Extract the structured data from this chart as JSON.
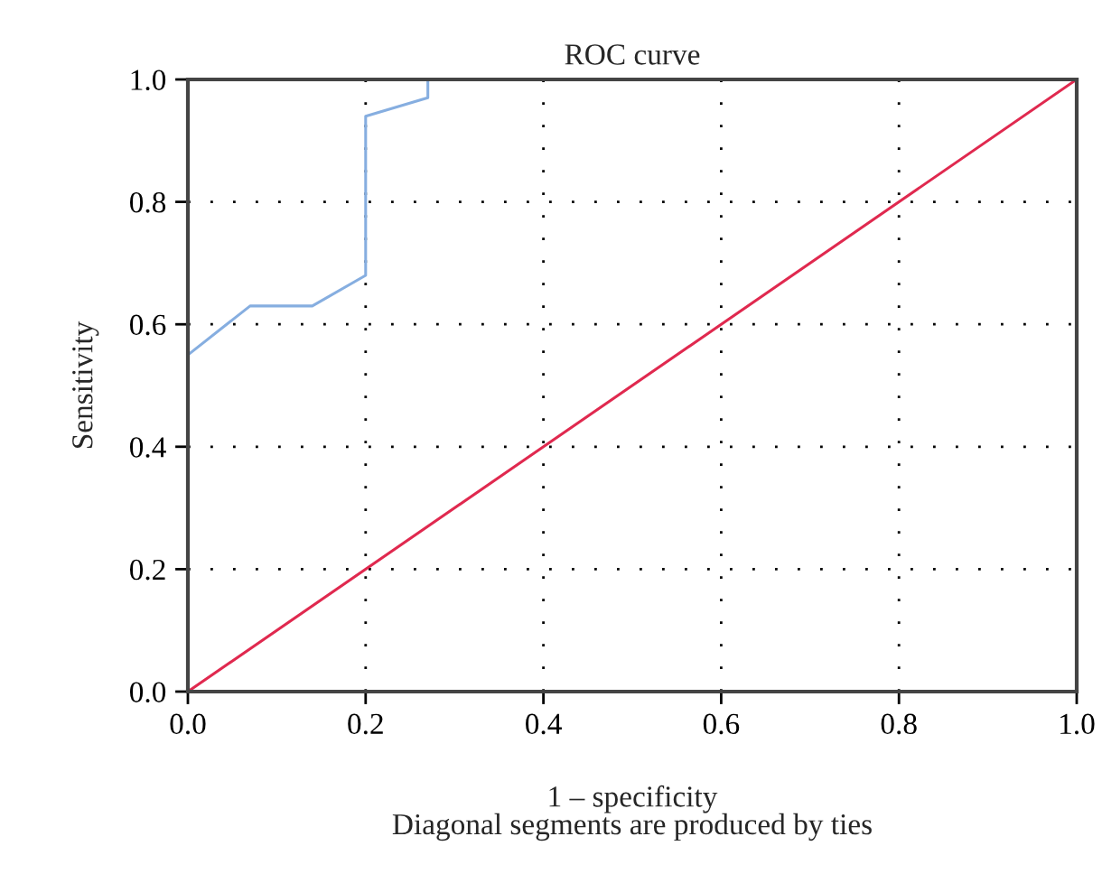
{
  "chart_data": {
    "type": "line",
    "title": "ROC curve",
    "xlabel": "1 – specificity",
    "ylabel": "Sensitivity",
    "annotations": [
      "Diagonal segments are produced by ties"
    ],
    "series": [
      {
        "color": "#86aee0",
        "x": [
          0,
          0,
          0.07,
          0.14,
          0.2,
          0.2,
          0.27,
          0.27
        ],
        "values": [
          0,
          0.55,
          0.63,
          0.63,
          0.68,
          0.94,
          0.97,
          1.0
        ]
      },
      {
        "color": "#e0294f",
        "x": [
          0,
          1
        ],
        "values": [
          0,
          1
        ]
      }
    ],
    "xlim": [
      0,
      1
    ],
    "ylim": [
      0,
      1
    ],
    "xticks": [
      {
        "value": 0,
        "label": "0.0"
      },
      0.2,
      0.4,
      0.6,
      0.8,
      {
        "value": 1,
        "label": "1.0"
      }
    ],
    "yticks": [
      {
        "value": 0,
        "label": "0.0"
      },
      0.2,
      0.4,
      0.6,
      0.8,
      {
        "value": 1,
        "label": "1.0"
      }
    ],
    "grid": true,
    "legend": false
  }
}
